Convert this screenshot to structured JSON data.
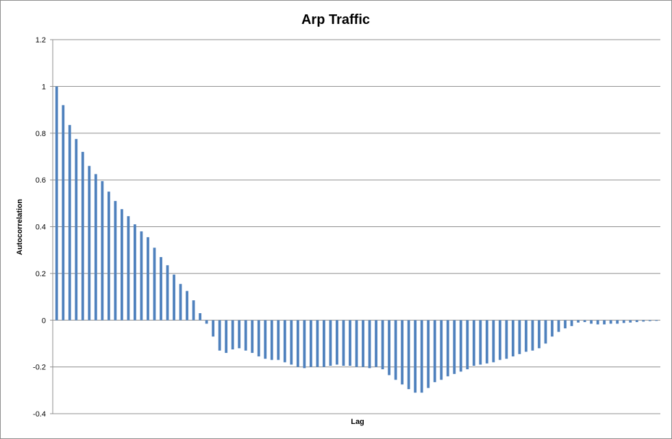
{
  "chart_data": {
    "type": "bar",
    "title": "Arp Traffic",
    "xlabel": "Lag",
    "ylabel": "Autocorrelation",
    "ylim": [
      -0.4,
      1.2
    ],
    "yticks": [
      "-0.4",
      "-0.2",
      "0",
      "0.2",
      "0.4",
      "0.6",
      "0.8",
      "1",
      "1.2"
    ],
    "grid": true,
    "legend": "none",
    "bar_color": "#4f81bd",
    "series": [
      {
        "values": [
          1.0,
          0.92,
          0.835,
          0.775,
          0.72,
          0.66,
          0.625,
          0.595,
          0.55,
          0.51,
          0.475,
          0.445,
          0.41,
          0.38,
          0.355,
          0.31,
          0.27,
          0.235,
          0.195,
          0.155,
          0.125,
          0.085,
          0.03,
          -0.015,
          -0.07,
          -0.13,
          -0.14,
          -0.125,
          -0.12,
          -0.13,
          -0.14,
          -0.155,
          -0.165,
          -0.17,
          -0.17,
          -0.18,
          -0.19,
          -0.2,
          -0.205,
          -0.2,
          -0.2,
          -0.2,
          -0.195,
          -0.19,
          -0.195,
          -0.195,
          -0.2,
          -0.2,
          -0.205,
          -0.2,
          -0.21,
          -0.235,
          -0.255,
          -0.275,
          -0.295,
          -0.31,
          -0.31,
          -0.29,
          -0.265,
          -0.255,
          -0.24,
          -0.23,
          -0.22,
          -0.21,
          -0.195,
          -0.19,
          -0.185,
          -0.18,
          -0.17,
          -0.165,
          -0.155,
          -0.145,
          -0.135,
          -0.13,
          -0.12,
          -0.1,
          -0.07,
          -0.05,
          -0.035,
          -0.025,
          -0.01,
          -0.008,
          -0.015,
          -0.018,
          -0.018,
          -0.015,
          -0.015,
          -0.012,
          -0.01,
          -0.008,
          -0.006,
          -0.004,
          -0.003
        ]
      }
    ]
  }
}
